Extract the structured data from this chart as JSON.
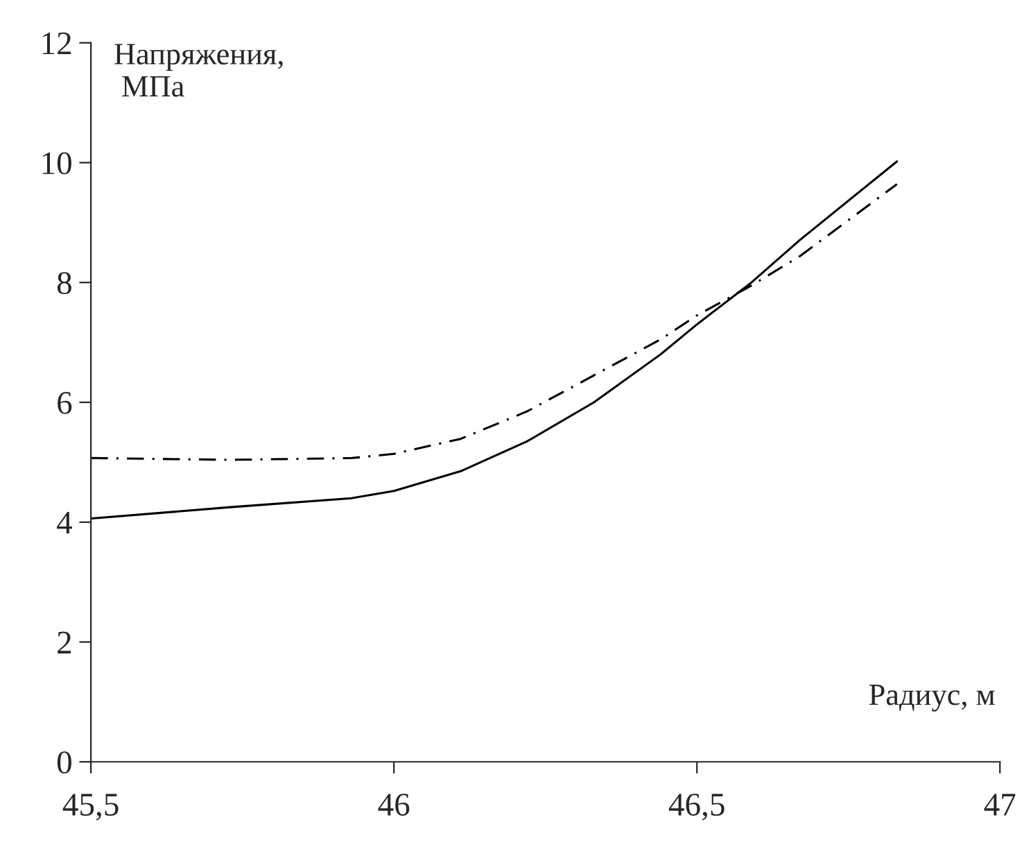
{
  "chart_data": {
    "type": "line",
    "xlabel": "Радиус, м",
    "ylabel": "Напряжения,\n МПа",
    "xlim": [
      45.5,
      47
    ],
    "xticks": [
      {
        "value": 45.5,
        "label": "45,5"
      },
      46,
      {
        "value": 46.5,
        "label": "46,5"
      },
      47
    ],
    "ylim": [
      0,
      12
    ],
    "yticks": [
      0,
      2,
      4,
      6,
      8,
      10,
      12
    ],
    "grid": false,
    "legend": false,
    "series": [
      {
        "color": "#000000",
        "line_style": "solid",
        "x": [
          45.5,
          45.73,
          45.93,
          46.0,
          46.11,
          46.22,
          46.33,
          46.44,
          46.5,
          46.59,
          46.67,
          46.83
        ],
        "values": [
          4.06,
          4.25,
          4.4,
          4.52,
          4.85,
          5.35,
          6.0,
          6.8,
          7.3,
          8.0,
          8.71,
          10.02
        ]
      },
      {
        "color": "#000000",
        "line_style": "dashed",
        "x": [
          45.5,
          45.73,
          45.93,
          46.0,
          46.11,
          46.22,
          46.33,
          46.44,
          46.5,
          46.59,
          46.67,
          46.83
        ],
        "values": [
          5.07,
          5.04,
          5.07,
          5.14,
          5.39,
          5.85,
          6.45,
          7.05,
          7.45,
          7.95,
          8.44,
          9.64
        ]
      }
    ]
  }
}
